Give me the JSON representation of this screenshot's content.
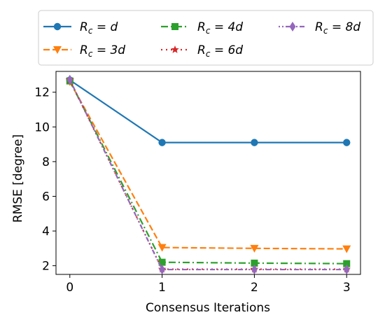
{
  "chart_data": {
    "type": "line",
    "title": "",
    "xlabel": "Consensus Iterations",
    "ylabel": "RMSE [degree]",
    "x": [
      0,
      1,
      2,
      3
    ],
    "xlim": [
      -0.15,
      3.15
    ],
    "ylim": [
      1.5,
      13.2
    ],
    "xticks": [
      "0",
      "1",
      "2",
      "3"
    ],
    "yticks": [
      "2",
      "4",
      "6",
      "8",
      "10",
      "12"
    ],
    "grid": false,
    "legend_position": "top (outside, above plot)",
    "series": [
      {
        "name": "R_c = d",
        "label_main": "R",
        "label_sub": "c",
        "label_rhs": " = d",
        "color": "#1f77b4",
        "dash": "solid",
        "marker": "circle",
        "values": [
          12.7,
          9.1,
          9.1,
          9.1
        ]
      },
      {
        "name": "R_c = 3d",
        "label_main": "R",
        "label_sub": "c",
        "label_rhs": " = 3d",
        "color": "#ff7f0e",
        "dash": "dashed",
        "marker": "triangle-down",
        "values": [
          12.6,
          3.05,
          3.0,
          2.97
        ]
      },
      {
        "name": "R_c = 4d",
        "label_main": "R",
        "label_sub": "c",
        "label_rhs": " = 4d",
        "color": "#2ca02c",
        "dash": "dashdot",
        "marker": "square",
        "values": [
          12.65,
          2.2,
          2.15,
          2.12
        ]
      },
      {
        "name": "R_c = 6d",
        "label_main": "R",
        "label_sub": "c",
        "label_rhs": " = 6d",
        "color": "#d62728",
        "dash": "dotted",
        "marker": "star",
        "values": [
          12.7,
          1.8,
          1.8,
          1.8
        ]
      },
      {
        "name": "R_c = 8d",
        "label_main": "R",
        "label_sub": "c",
        "label_rhs": " = 8d",
        "color": "#9467bd",
        "dash": "densedot",
        "marker": "thin-diamond",
        "values": [
          12.72,
          1.78,
          1.78,
          1.78
        ]
      }
    ]
  }
}
